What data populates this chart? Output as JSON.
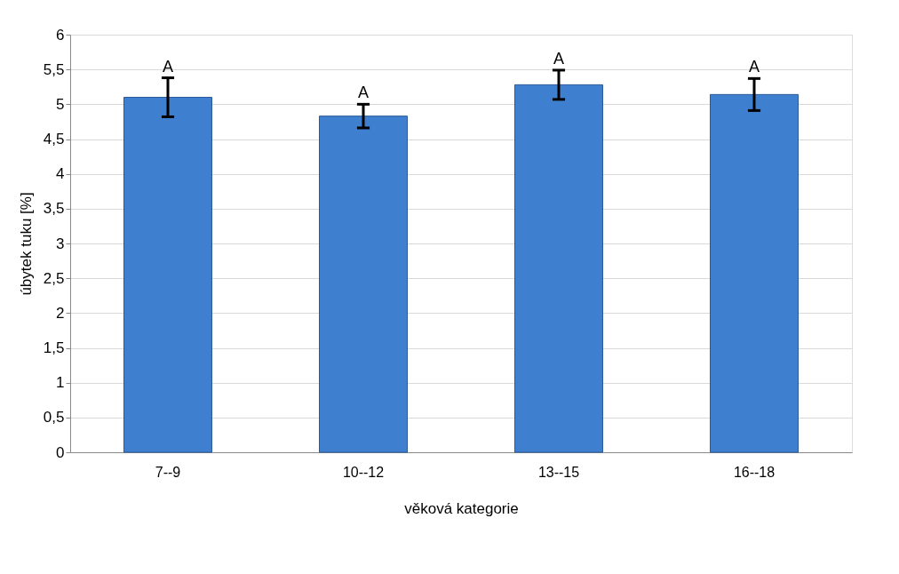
{
  "chart_data": {
    "type": "bar",
    "xlabel": "věková kategorie",
    "ylabel": "úbytek tuku [%]",
    "categories": [
      "7--9",
      "10--12",
      "13--15",
      "16--18"
    ],
    "values": [
      5.1,
      4.83,
      5.28,
      5.14
    ],
    "errors": [
      0.28,
      0.17,
      0.21,
      0.23
    ],
    "color": "#3f7fd0",
    "ylim": [
      0,
      6
    ],
    "yticks": [
      0,
      {
        "value": 0.5,
        "label": "0,5"
      },
      1,
      {
        "value": 1.5,
        "label": "1,5"
      },
      2,
      {
        "value": 2.5,
        "label": "2,5"
      },
      3,
      {
        "value": 3.5,
        "label": "3,5"
      },
      4,
      {
        "value": 4.5,
        "label": "4,5"
      },
      5,
      {
        "value": 5.5,
        "label": "5,5"
      },
      6
    ],
    "grid": "y",
    "annotations": [
      {
        "text": "A",
        "x": "7--9",
        "y": 5.38
      },
      {
        "text": "A",
        "x": "10--12",
        "y": 5.0
      },
      {
        "text": "A",
        "x": "13--15",
        "y": 5.49
      },
      {
        "text": "A",
        "x": "16--18",
        "y": 5.37
      }
    ]
  }
}
